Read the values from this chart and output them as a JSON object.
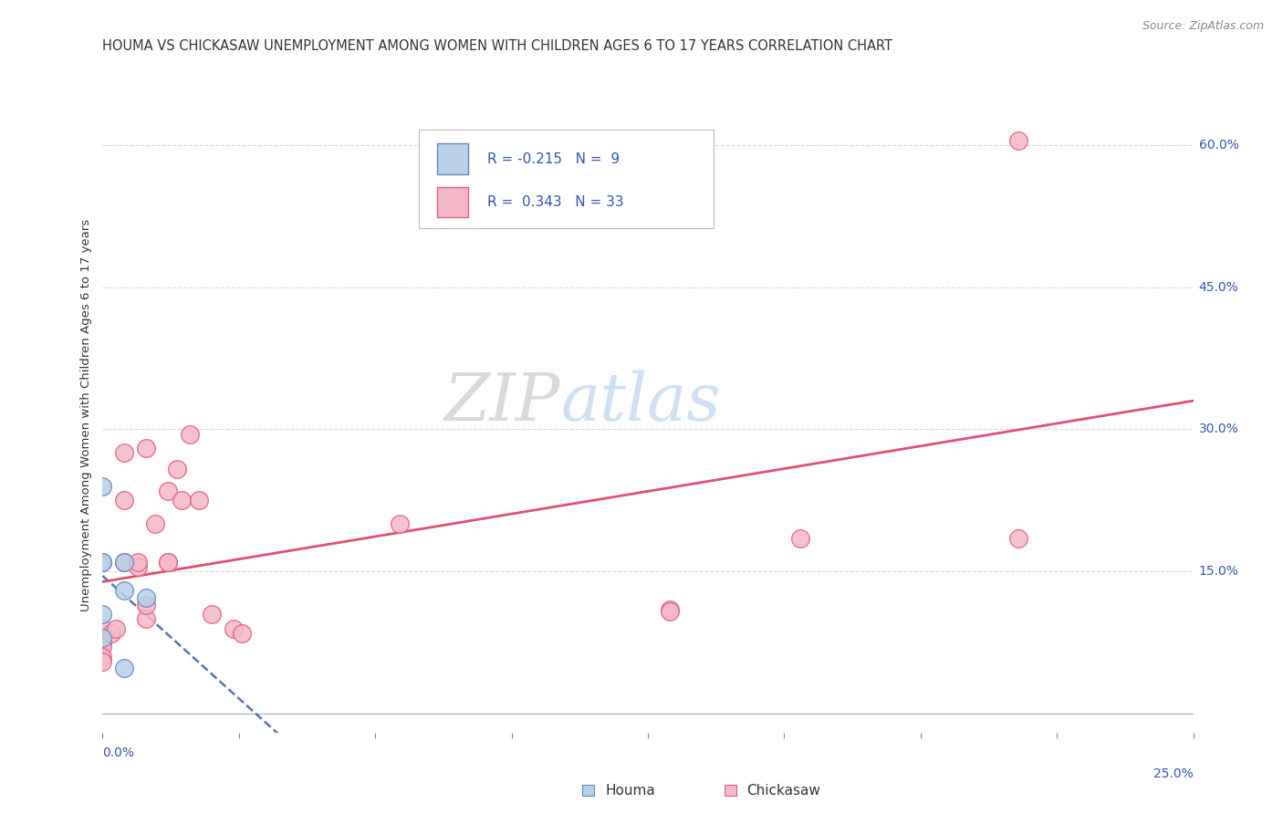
{
  "title": "HOUMA VS CHICKASAW UNEMPLOYMENT AMONG WOMEN WITH CHILDREN AGES 6 TO 17 YEARS CORRELATION CHART",
  "source": "Source: ZipAtlas.com",
  "ylabel": "Unemployment Among Women with Children Ages 6 to 17 years",
  "ytick_labels": [
    "15.0%",
    "30.0%",
    "45.0%",
    "60.0%"
  ],
  "ytick_values": [
    0.15,
    0.3,
    0.45,
    0.6
  ],
  "xlim": [
    0.0,
    0.25
  ],
  "ylim": [
    -0.02,
    0.65
  ],
  "legend_houma_R": "-0.215",
  "legend_houma_N": "9",
  "legend_chickasaw_R": "0.343",
  "legend_chickasaw_N": "33",
  "houma_color": "#b8d0e8",
  "chickasaw_color": "#f5b8c8",
  "houma_edge_color": "#6688bb",
  "chickasaw_edge_color": "#e06080",
  "houma_line_color": "#4466aa",
  "chickasaw_line_color": "#e05070",
  "houma_scatter": [
    [
      0.0,
      0.16
    ],
    [
      0.0,
      0.24
    ],
    [
      0.0,
      0.16
    ],
    [
      0.0,
      0.105
    ],
    [
      0.0,
      0.08
    ],
    [
      0.005,
      0.16
    ],
    [
      0.005,
      0.13
    ],
    [
      0.01,
      0.122
    ],
    [
      0.005,
      0.048
    ]
  ],
  "chickasaw_scatter": [
    [
      0.0,
      0.09
    ],
    [
      0.0,
      0.08
    ],
    [
      0.0,
      0.075
    ],
    [
      0.0,
      0.07
    ],
    [
      0.0,
      0.06
    ],
    [
      0.0,
      0.055
    ],
    [
      0.002,
      0.085
    ],
    [
      0.003,
      0.09
    ],
    [
      0.005,
      0.16
    ],
    [
      0.005,
      0.225
    ],
    [
      0.005,
      0.275
    ],
    [
      0.008,
      0.155
    ],
    [
      0.008,
      0.16
    ],
    [
      0.01,
      0.1
    ],
    [
      0.01,
      0.115
    ],
    [
      0.01,
      0.28
    ],
    [
      0.012,
      0.2
    ],
    [
      0.015,
      0.16
    ],
    [
      0.015,
      0.16
    ],
    [
      0.015,
      0.235
    ],
    [
      0.017,
      0.258
    ],
    [
      0.018,
      0.225
    ],
    [
      0.02,
      0.295
    ],
    [
      0.022,
      0.225
    ],
    [
      0.025,
      0.105
    ],
    [
      0.03,
      0.09
    ],
    [
      0.032,
      0.085
    ],
    [
      0.068,
      0.2
    ],
    [
      0.13,
      0.11
    ],
    [
      0.13,
      0.108
    ],
    [
      0.16,
      0.185
    ],
    [
      0.21,
      0.185
    ],
    [
      0.21,
      0.605
    ]
  ],
  "background_color": "#ffffff",
  "grid_color": "#d8d8d8",
  "title_fontsize": 10.5,
  "axis_label_fontsize": 9.5,
  "tick_fontsize": 10,
  "legend_fontsize": 11,
  "source_fontsize": 9,
  "label_color": "#3355aa",
  "text_color": "#333333"
}
